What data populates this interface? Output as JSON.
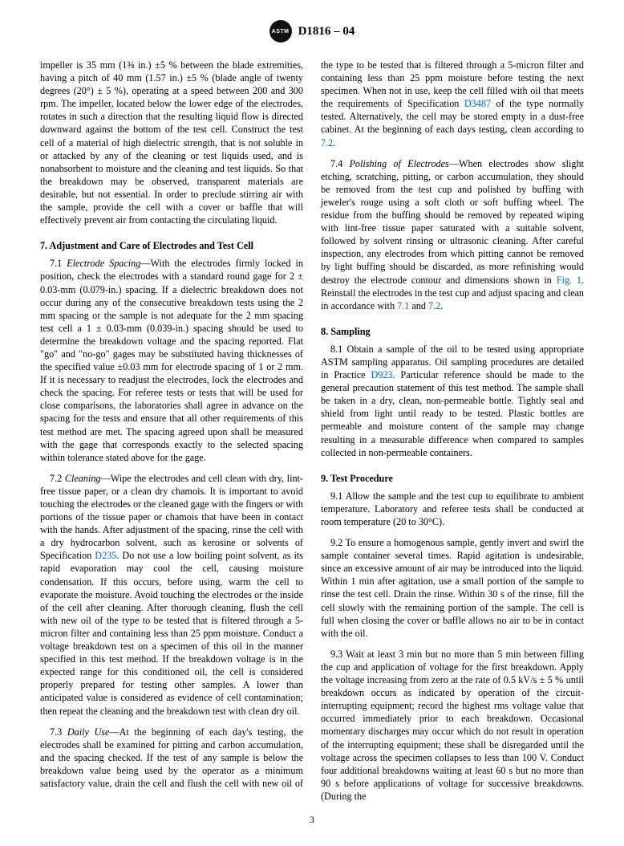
{
  "header": {
    "logo_text": "ASTM",
    "designation": "D1816 – 04"
  },
  "col": {
    "p_impeller": "impeller is 35 mm (1⅜ in.) ±5 % between the blade extremities, having a pitch of 40 mm (1.57 in.) ±5 % (blade angle of twenty degrees (20°) ± 5 %), operating at a speed between 200 and 300 rpm. The impeller, located below the lower edge of the electrodes, rotates in such a direction that the resulting liquid flow is directed downward against the bottom of the test cell. Construct the test cell of a material of high dielectric strength, that is not soluble in or attacked by any of the cleaning or test liquids used, and is nonabsorbent to moisture and the cleaning and test liquids. So that the breakdown may be observed, transparent materials are desirable, but not essential. In order to preclude stirring air with the sample, provide the cell with a cover or baffle that will effectively prevent air from contacting the circulating liquid.",
    "s7_title": "7.  Adjustment and Care of Electrodes and Test Cell",
    "s7_1_lead": "7.1 ",
    "s7_1_subtitle": "Electrode Spacing",
    "s7_1_body": "—With the electrodes firmly locked in position, check the electrodes with a standard round gage for 2 ± 0.03-mm (0.079-in.) spacing. If a dielectric breakdown does not occur during any of the consecutive breakdown tests using the 2 mm spacing or the sample is not adequate for the 2 mm spacing test cell a 1 ± 0.03-mm (0.039-in.) spacing should be used to determine the breakdown voltage and the spacing reported. Flat \"go\" and \"no-go\" gages may be substituted having thicknesses of the specified value ±0.03 mm for electrode spacing of 1 or 2 mm. If it is necessary to readjust the electrodes, lock the electrodes and check the spacing. For referee tests or tests that will be used for close comparisons, the laboratories shall agree in advance on the spacing for the tests and ensure that all other requirements of this test method are met. The spacing agreed upon shall be measured with the gage that corresponds exactly to the selected spacing within tolerance stated above for the gage.",
    "s7_2_lead": "7.2 ",
    "s7_2_subtitle": "Cleaning",
    "s7_2_body_a": "—Wipe the electrodes and cell clean with dry, lint-free tissue paper, or a clean dry chamois. It is important to avoid touching the electrodes or the cleaned gage with the fingers or with portions of the tissue paper or chamois that have been in contact with the hands. After adjustment of the spacing, rinse the cell with a dry hydrocarbon solvent, such as kerosine or solvents of Specification ",
    "s7_2_ref": "D235",
    "s7_2_body_b": ". Do not use a low boiling point solvent, as its rapid evaporation may cool the cell, causing moisture condensation. If this occurs, before using, warm the cell to evaporate the moisture. Avoid touching the electrodes or the inside of the cell after cleaning. After thorough cleaning, flush the cell with new oil of the type to be tested that is filtered through a 5-micron filter and containing less than 25 ppm moisture. Conduct a voltage breakdown test on a specimen of this oil in the manner specified in this test method. If the breakdown voltage is in the expected range for this conditioned oil, the cell is considered properly prepared for testing other samples. A lower than anticipated value is considered as evidence of cell contamination; then repeat the cleaning and the breakdown test with clean dry oil.",
    "s7_3_lead": "7.3 ",
    "s7_3_subtitle": "Daily Use",
    "s7_3_body_a": "—At the beginning of each day's testing, the electrodes shall be examined for pitting and carbon accumulation, and the spacing checked. If the test of any sample is below the breakdown value being used by the operator as a minimum satisfactory value, drain the cell and flush the cell with new oil of the type to be tested that is filtered through a 5-micron filter and containing less than 25 ppm moisture before testing the next specimen. When not in use, keep the cell filled with oil that meets the requirements of Specification ",
    "s7_3_ref": "D3487",
    "s7_3_body_b": " of the type normally tested. Alternatively, the cell may be stored empty in a dust-free cabinet. At the beginning of each days testing, clean according to ",
    "s7_3_ref2": "7.2",
    "s7_3_body_c": ".",
    "s7_4_lead": "7.4 ",
    "s7_4_subtitle": "Polishing of Electrodes",
    "s7_4_body_a": "—When electrodes show slight etching, scratching, pitting, or carbon accumulation, they should be removed from the test cup and polished by buffing with jeweler's rouge using a soft cloth or soft buffing wheel. The residue from the buffing should be removed by repeated wiping with lint-free tissue paper saturated with a suitable solvent, followed by solvent rinsing or ultrasonic cleaning. After careful inspection, any electrodes from which pitting cannot be removed by light buffing should be discarded, as more refinishing would destroy the electrode contour and dimensions shown in ",
    "s7_4_ref1": "Fig. 1",
    "s7_4_body_b": ". Reinstall the electrodes in the test cup and adjust spacing and clean in accordance with ",
    "s7_4_ref2": "7.1",
    "s7_4_body_c": " and ",
    "s7_4_ref3": "7.2",
    "s7_4_body_d": ".",
    "s8_title": "8.  Sampling",
    "s8_1_a": "8.1 Obtain a sample of the oil to be tested using appropriate ASTM sampling apparatus. Oil sampling procedures are detailed in Practice ",
    "s8_1_ref": "D923",
    "s8_1_b": ". Particular reference should be made to the general precaution statement of this test method. The sample shall be taken in a dry, clean, non-permeable bottle. Tightly seal and shield from light until ready to be tested. Plastic bottles are permeable and moisture content of the sample may change resulting in a measurable difference when compared to samples collected in non-permeable containers.",
    "s9_title": "9.  Test Procedure",
    "s9_1": "9.1 Allow the sample and the test cup to equilibrate to ambient temperature. Laboratory and referee tests shall be conducted at room temperature (20 to 30°C).",
    "s9_2": "9.2 To ensure a homogenous sample, gently invert and swirl the sample container several times. Rapid agitation is undesirable, since an excessive amount of air may be introduced into the liquid. Within 1 min after agitation, use a small portion of the sample to rinse the test cell. Drain the rinse. Within 30 s of the rinse, fill the cell slowly with the remaining portion of the sample. The cell is full when closing the cover or baffle allows no air to be in contact with the oil.",
    "s9_3": "9.3 Wait at least 3 min but no more than 5 min between filling the cup and application of voltage for the first breakdown. Apply the voltage increasing from zero at the rate of 0.5 kV/s ± 5 % until breakdown occurs as indicated by operation of the circuit-interrupting equipment; record the highest rms voltage value that occurred immediately prior to each breakdown. Occasional momentary discharges may occur which do not result in operation of the interrupting equipment; these shall be disregarded until the voltage across the specimen collapses to less than 100 V. Conduct four additional breakdowns waiting at least 60 s but no more than 90 s before applications of voltage for successive breakdowns. (During the"
  },
  "page_number": "3"
}
